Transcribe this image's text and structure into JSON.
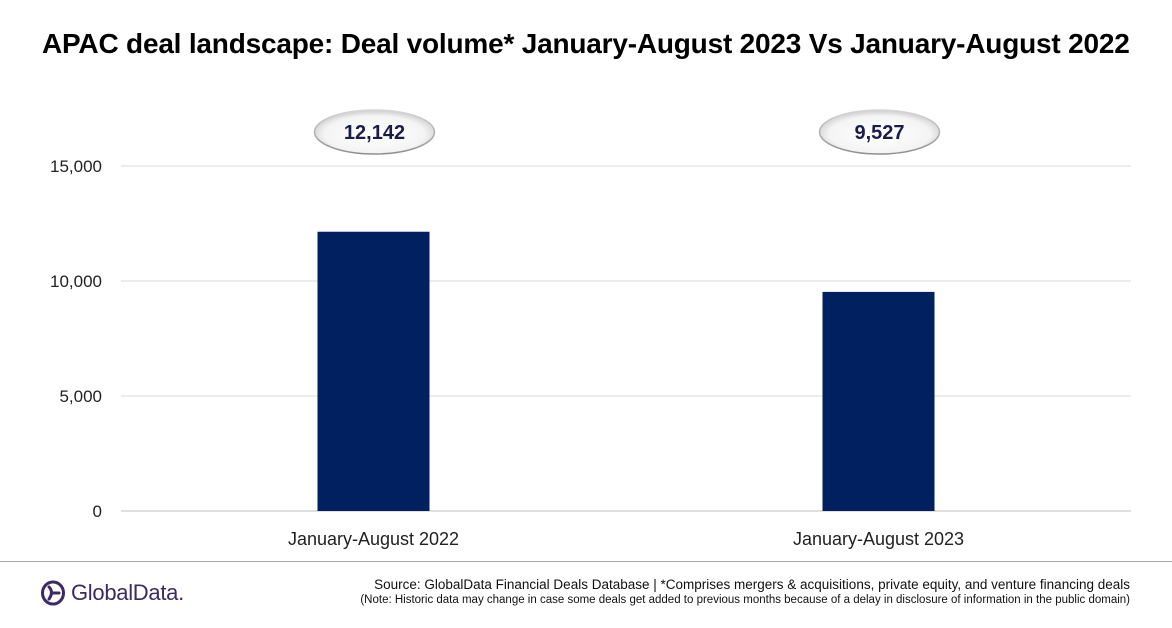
{
  "title": "APAC deal landscape: Deal volume* January-August 2023 Vs January-August 2022",
  "chart_data": {
    "type": "bar",
    "categories": [
      "January-August 2022",
      "January-August 2023"
    ],
    "values": [
      12142,
      9527
    ],
    "data_labels": [
      "12,142",
      "9,527"
    ],
    "title": "APAC deal landscape: Deal volume* January-August 2023 Vs January-August 2022",
    "xlabel": "",
    "ylabel": "",
    "ylim": [
      0,
      15000
    ],
    "yticks": [
      0,
      5000,
      10000,
      15000
    ],
    "ytick_labels": [
      "0",
      "5,000",
      "10,000",
      "15,000"
    ],
    "grid": true,
    "legend": "none",
    "bar_color": "#002060"
  },
  "footer": {
    "brand": "GlobalData.",
    "source": "Source: GlobalData Financial Deals Database | *Comprises mergers & acquisitions, private equity, and venture financing deals",
    "note": "(Note: Historic data may change in case some deals get added to previous months because of a delay in disclosure  of information in the public domain)"
  },
  "colors": {
    "bar": "#002060",
    "brand": "#3b2a63",
    "gridline": "#d9d9d9"
  }
}
